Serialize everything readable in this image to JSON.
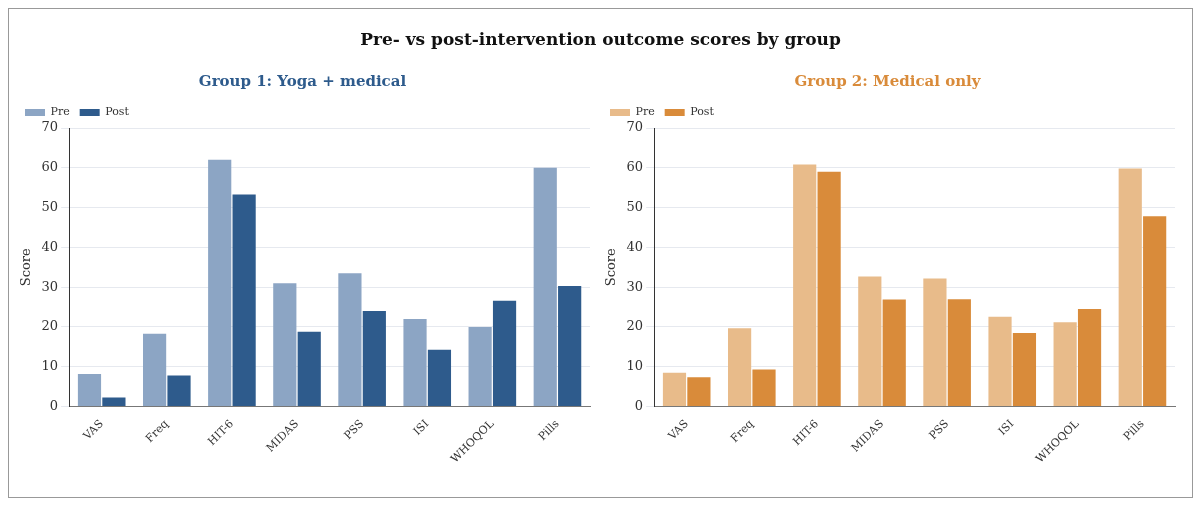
{
  "chart_data": [
    {
      "type": "bar",
      "title": "Pre- vs post-intervention outcome scores by group",
      "subtitle": "Group 1: Yoga + medical",
      "ylabel": "Score",
      "categories": [
        "VAS",
        "Freq",
        "HIT-6",
        "MIDAS",
        "PSS",
        "ISI",
        "WHOQOL",
        "Pills"
      ],
      "series": [
        {
          "name": "Pre",
          "color": "#8ca5c4",
          "values": [
            8.2,
            18.3,
            62,
            31,
            33.5,
            22,
            20,
            60
          ]
        },
        {
          "name": "Post",
          "color": "#2e5b8c",
          "values": [
            2.3,
            7.8,
            53.3,
            18.8,
            24,
            14.3,
            26.6,
            30.3
          ]
        }
      ],
      "ylim": [
        0,
        70
      ],
      "yticks": [
        0,
        10,
        20,
        30,
        40,
        50,
        60,
        70
      ],
      "grid": "y",
      "legend": "top left"
    },
    {
      "type": "bar",
      "subtitle": "Group 2: Medical only",
      "ylabel": "Score",
      "categories": [
        "VAS",
        "Freq",
        "HIT-6",
        "MIDAS",
        "PSS",
        "ISI",
        "WHOQOL",
        "Pills"
      ],
      "series": [
        {
          "name": "Pre",
          "color": "#e8bb8a",
          "values": [
            8.5,
            19.7,
            60.8,
            32.7,
            32.2,
            22.6,
            21.2,
            59.8
          ]
        },
        {
          "name": "Post",
          "color": "#d98b3a",
          "values": [
            7.4,
            9.3,
            59,
            26.9,
            27,
            18.5,
            24.5,
            47.8
          ]
        }
      ],
      "ylim": [
        0,
        70
      ],
      "yticks": [
        0,
        10,
        20,
        30,
        40,
        50,
        60,
        70
      ],
      "grid": "y",
      "legend": "top left"
    }
  ]
}
